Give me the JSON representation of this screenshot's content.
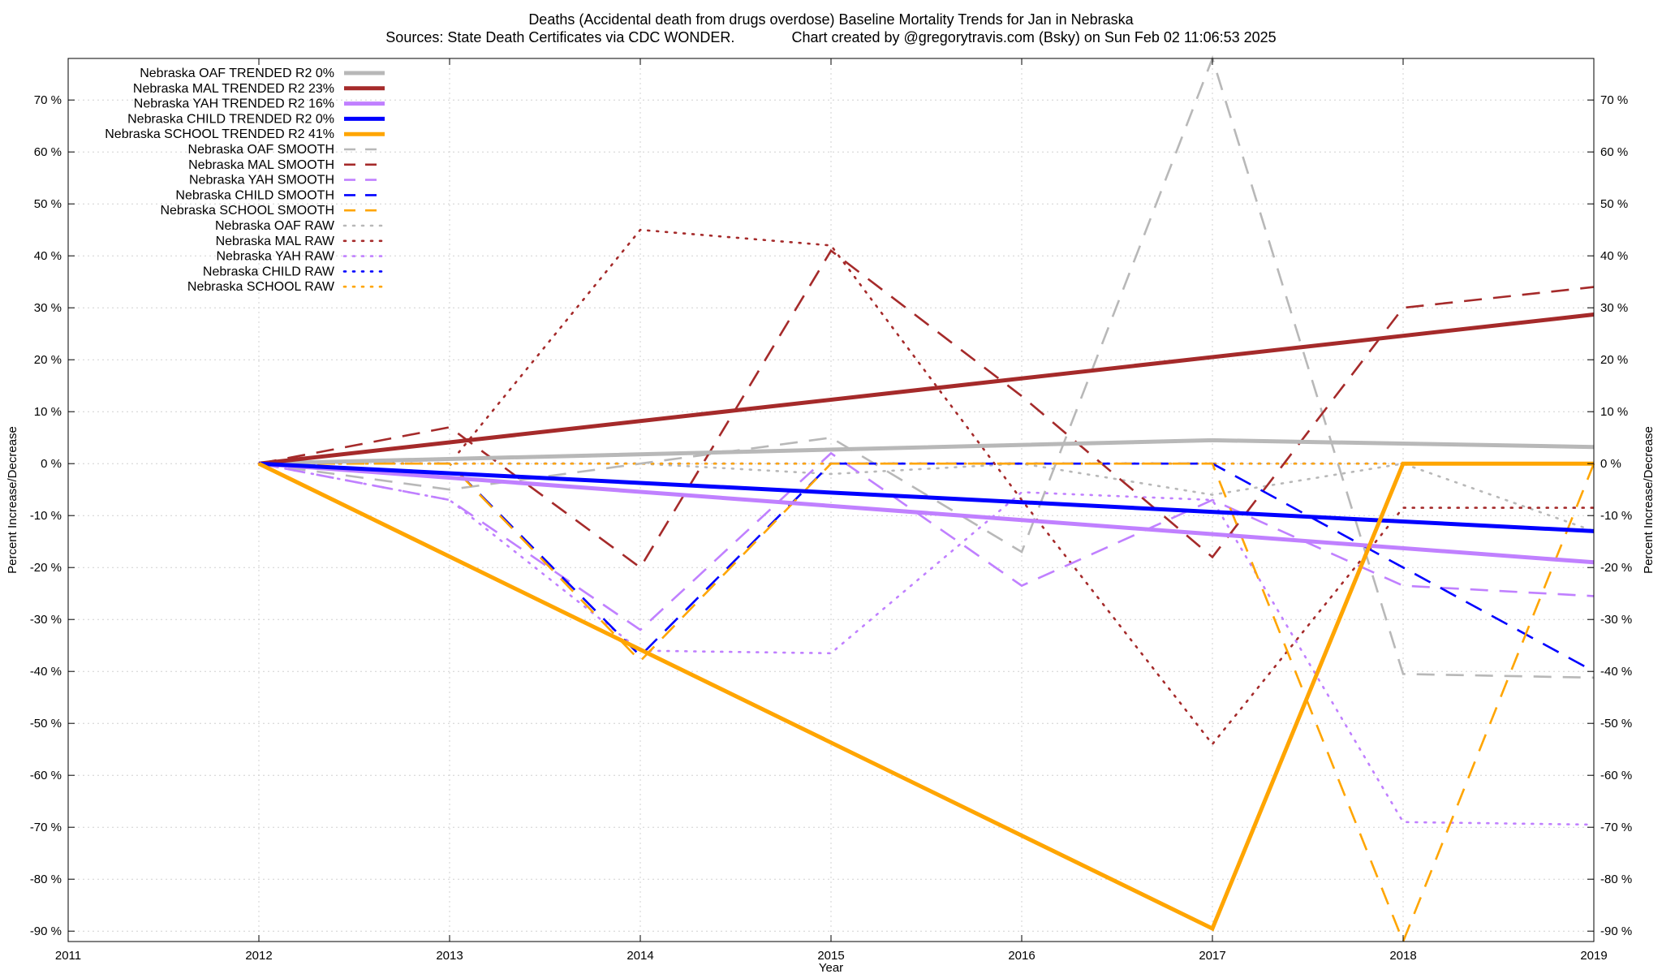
{
  "chart_data": {
    "type": "line",
    "title": "Deaths (Accidental death from drugs overdose)  Baseline Mortality Trends for Jan in Nebraska",
    "subtitle": "Sources: State Death Certificates via CDC WONDER.              Chart created by @gregorytravis.com (Bsky) on Sun Feb 02 11:06:53 2025",
    "xlabel": "Year",
    "ylabel": "Percent Increase/Decrease",
    "y2label": "Percent Increase/Decrease",
    "xlim": [
      2011,
      2019
    ],
    "ylim": [
      -92,
      78
    ],
    "x_ticks": [
      "2011",
      "2012",
      "2013",
      "2014",
      "2015",
      "2016",
      "2017",
      "2018",
      "2019"
    ],
    "y_ticks": [
      "70 %",
      "60 %",
      "50 %",
      "40 %",
      "30 %",
      "20 %",
      "10 %",
      "0 %",
      "-10 %",
      "-20 %",
      "-30 %",
      "-40 %",
      "-50 %",
      "-60 %",
      "-70 %",
      "-80 %",
      "-90 %"
    ],
    "grid": true,
    "legend_position": "top-left",
    "colors": {
      "OAF": "#b8b8b8",
      "MAL": "#a52a2a",
      "YAH": "#c080ff",
      "CHILD": "#0000ff",
      "SCHOOL": "#ffa500"
    },
    "series": [
      {
        "name": "Nebraska OAF TRENDED R2  0%",
        "group": "OAF",
        "style": "trend",
        "x": [
          2012,
          2017,
          2019
        ],
        "y": [
          0,
          4.5,
          3.2
        ]
      },
      {
        "name": "Nebraska MAL TRENDED R2  23%",
        "group": "MAL",
        "style": "trend",
        "x": [
          2012,
          2019
        ],
        "y": [
          0,
          28.7
        ]
      },
      {
        "name": "Nebraska YAH TRENDED R2  16%",
        "group": "YAH",
        "style": "trend",
        "x": [
          2012,
          2019
        ],
        "y": [
          0,
          -19
        ]
      },
      {
        "name": "Nebraska CHILD TRENDED R2  0%",
        "group": "CHILD",
        "style": "trend",
        "x": [
          2012,
          2019
        ],
        "y": [
          0,
          -13
        ]
      },
      {
        "name": "Nebraska SCHOOL TRENDED R2  41%",
        "group": "SCHOOL",
        "style": "trend",
        "x": [
          2012,
          2017,
          2018,
          2019
        ],
        "y": [
          0,
          -89.5,
          0,
          0
        ]
      },
      {
        "name": "Nebraska OAF SMOOTH",
        "group": "OAF",
        "style": "smooth",
        "x": [
          2012,
          2013,
          2014,
          2015,
          2016,
          2017,
          2018,
          2019
        ],
        "y": [
          0,
          -5,
          0,
          5,
          -17,
          78,
          -40.5,
          -41.2
        ]
      },
      {
        "name": "Nebraska MAL SMOOTH",
        "group": "MAL",
        "style": "smooth",
        "x": [
          2012,
          2013,
          2014,
          2015,
          2016,
          2017,
          2018,
          2019
        ],
        "y": [
          0,
          7,
          -20,
          41,
          13,
          -18,
          30,
          34
        ]
      },
      {
        "name": "Nebraska YAH SMOOTH",
        "group": "YAH",
        "style": "smooth",
        "x": [
          2012,
          2013,
          2014,
          2015,
          2016,
          2017,
          2018,
          2019
        ],
        "y": [
          0,
          -7,
          -32,
          2,
          -23.5,
          -7,
          -23.5,
          -25.5
        ]
      },
      {
        "name": "Nebraska CHILD SMOOTH",
        "group": "CHILD",
        "style": "smooth",
        "x": [
          2012,
          2013,
          2014,
          2015,
          2016,
          2017,
          2018,
          2019
        ],
        "y": [
          0,
          0,
          -37,
          0,
          0,
          0,
          -20,
          -40
        ]
      },
      {
        "name": "Nebraska SCHOOL SMOOTH",
        "group": "SCHOOL",
        "style": "smooth",
        "x": [
          2012,
          2013,
          2014,
          2015,
          2016,
          2017,
          2018,
          2019
        ],
        "y": [
          0,
          0,
          -38,
          0,
          0,
          0,
          -92,
          0
        ]
      },
      {
        "name": "Nebraska OAF RAW",
        "group": "OAF",
        "style": "raw",
        "x": [
          2012,
          2013,
          2014,
          2015,
          2016,
          2017,
          2018,
          2019
        ],
        "y": [
          0,
          0,
          0,
          -2,
          0,
          -6,
          0,
          -13
        ]
      },
      {
        "name": "Nebraska MAL RAW",
        "group": "MAL",
        "style": "raw",
        "x": [
          2012,
          2013,
          2014,
          2015,
          2016,
          2017,
          2018,
          2019
        ],
        "y": [
          0,
          0,
          45,
          42,
          -7,
          -54,
          -8.5,
          -8.5
        ]
      },
      {
        "name": "Nebraska YAH RAW",
        "group": "YAH",
        "style": "raw",
        "x": [
          2012,
          2013,
          2014,
          2015,
          2016,
          2017,
          2018,
          2019
        ],
        "y": [
          0,
          -7,
          -36,
          -36.5,
          -5.5,
          -7,
          -69,
          -69.5
        ]
      },
      {
        "name": "Nebraska CHILD RAW",
        "group": "CHILD",
        "style": "raw",
        "x": [
          2012,
          2013,
          2014,
          2015,
          2016,
          2017,
          2018,
          2019
        ],
        "y": [
          0,
          0,
          0,
          0,
          0,
          0,
          0,
          0
        ]
      },
      {
        "name": "Nebraska SCHOOL RAW",
        "group": "SCHOOL",
        "style": "raw",
        "x": [
          2012,
          2013,
          2014,
          2015,
          2016,
          2017,
          2018,
          2019
        ],
        "y": [
          0,
          0,
          0,
          0,
          0,
          0,
          0,
          0
        ]
      }
    ]
  }
}
